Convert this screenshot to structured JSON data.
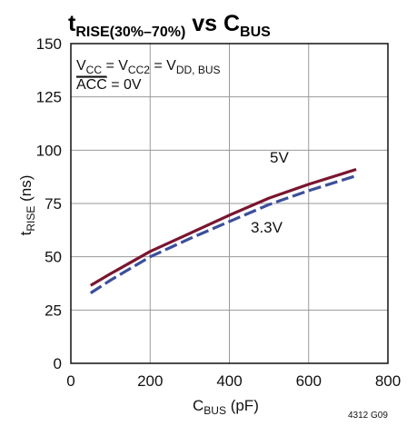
{
  "title": {
    "main": "t",
    "sub": "RISE(30%–70%)",
    "vs": " vs C",
    "vs_sub": "BUS"
  },
  "conditions": {
    "line1": {
      "a": "V",
      "a_sub": "CC",
      "b": " = V",
      "b_sub": "CC2",
      "c": " = V",
      "c_sub": "DD, BUS"
    },
    "line2": {
      "overlined": "ACC",
      "rest": " = 0V"
    }
  },
  "axes": {
    "xlabel": {
      "main": "C",
      "sub": "BUS",
      "unit": " (pF)"
    },
    "ylabel": {
      "main": "t",
      "sub": "RISE",
      "unit": " (ns)"
    },
    "xticks": [
      "0",
      "200",
      "400",
      "600",
      "800"
    ],
    "yticks": [
      "0",
      "25",
      "50",
      "75",
      "100",
      "125",
      "150"
    ]
  },
  "figure_code": "4312 G09",
  "chart_data": {
    "type": "line",
    "xlim": [
      0,
      800
    ],
    "ylim": [
      0,
      150
    ],
    "x_grid": [
      0,
      200,
      400,
      600,
      800
    ],
    "y_grid": [
      0,
      25,
      50,
      75,
      100,
      125,
      150
    ],
    "grid": true,
    "series": [
      {
        "name": "5V",
        "color": "#7a1530",
        "dash": "solid",
        "x": [
          50,
          100,
          200,
          300,
          400,
          500,
          600,
          720
        ],
        "y": [
          36.5,
          42,
          52.5,
          61,
          69.5,
          77.5,
          84,
          91
        ]
      },
      {
        "name": "3.3V",
        "color": "#3c4f9a",
        "dash": "dashed",
        "x": [
          50,
          100,
          200,
          300,
          400,
          500,
          600,
          720
        ],
        "y": [
          33,
          39,
          50,
          58.5,
          66.5,
          74.5,
          81,
          88
        ]
      }
    ]
  }
}
